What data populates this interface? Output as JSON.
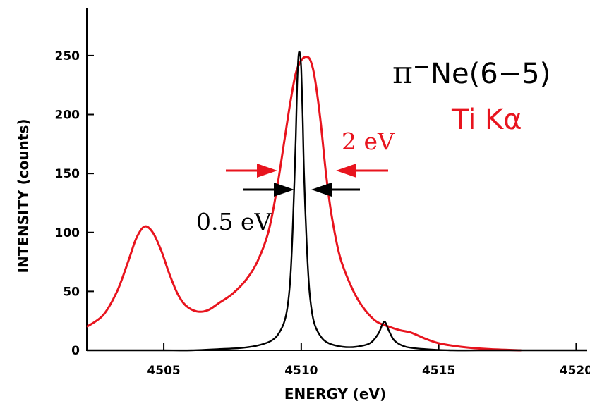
{
  "chart_data": {
    "type": "line",
    "xlabel": "ENERGY (eV)",
    "ylabel": "INTENSITY (counts)",
    "xlim": [
      4502.2,
      4520.4
    ],
    "ylim": [
      0,
      290
    ],
    "x_ticks": [
      4505,
      4510,
      4515,
      4520
    ],
    "y_ticks": [
      0,
      50,
      100,
      150,
      200,
      250
    ],
    "legend_position": "top-right",
    "grid": false,
    "series": [
      {
        "name": "π⁻Ne(6−5)",
        "color": "#000000",
        "x": [
          4502.2,
          4503.0,
          4504.0,
          4505.0,
          4506.0,
          4507.0,
          4507.8,
          4508.4,
          4508.9,
          4509.2,
          4509.45,
          4509.6,
          4509.7,
          4509.8,
          4509.85,
          4509.9,
          4509.95,
          4510.0,
          4510.05,
          4510.1,
          4510.2,
          4510.3,
          4510.45,
          4510.7,
          4511.0,
          4511.5,
          4512.0,
          4512.5,
          4512.8,
          4512.95,
          4513.05,
          4513.2,
          4513.4,
          4513.8,
          4514.5,
          4515.5,
          4517.0,
          4519.0,
          4520.4
        ],
        "y": [
          0,
          0,
          0,
          0,
          0,
          1,
          2,
          4,
          8,
          15,
          30,
          60,
          110,
          180,
          225,
          250,
          252,
          238,
          200,
          150,
          90,
          50,
          25,
          12,
          6,
          3,
          3,
          6,
          14,
          22,
          24,
          16,
          8,
          3,
          1,
          0,
          0,
          0,
          0
        ]
      },
      {
        "name": "Ti Kα",
        "color": "#e8141e",
        "x": [
          4502.2,
          4502.8,
          4503.3,
          4503.7,
          4504.0,
          4504.3,
          4504.6,
          4504.9,
          4505.2,
          4505.5,
          4505.8,
          4506.2,
          4506.6,
          4507.0,
          4507.5,
          4508.0,
          4508.4,
          4508.8,
          4509.1,
          4509.4,
          4509.6,
          4509.8,
          4510.0,
          4510.2,
          4510.35,
          4510.5,
          4510.7,
          4510.9,
          4511.1,
          4511.4,
          4511.8,
          4512.2,
          4512.7,
          4513.2,
          4513.6,
          4514.0,
          4514.5,
          4515.0,
          4515.8,
          4516.8,
          4518.0
        ],
        "y": [
          20,
          30,
          50,
          75,
          95,
          105,
          100,
          85,
          65,
          48,
          38,
          33,
          34,
          40,
          48,
          60,
          75,
          100,
          135,
          180,
          210,
          235,
          246,
          249,
          245,
          230,
          195,
          150,
          115,
          80,
          55,
          38,
          25,
          20,
          17,
          15,
          10,
          6,
          3,
          1,
          0
        ]
      }
    ],
    "annotations": {
      "red_width": "2 eV",
      "black_width": "0.5 eV"
    }
  },
  "legend": {
    "black_prefix": "π",
    "black_superscript": "−",
    "black_rest": "Ne(6−5)",
    "red_label": "Ti Kα"
  }
}
